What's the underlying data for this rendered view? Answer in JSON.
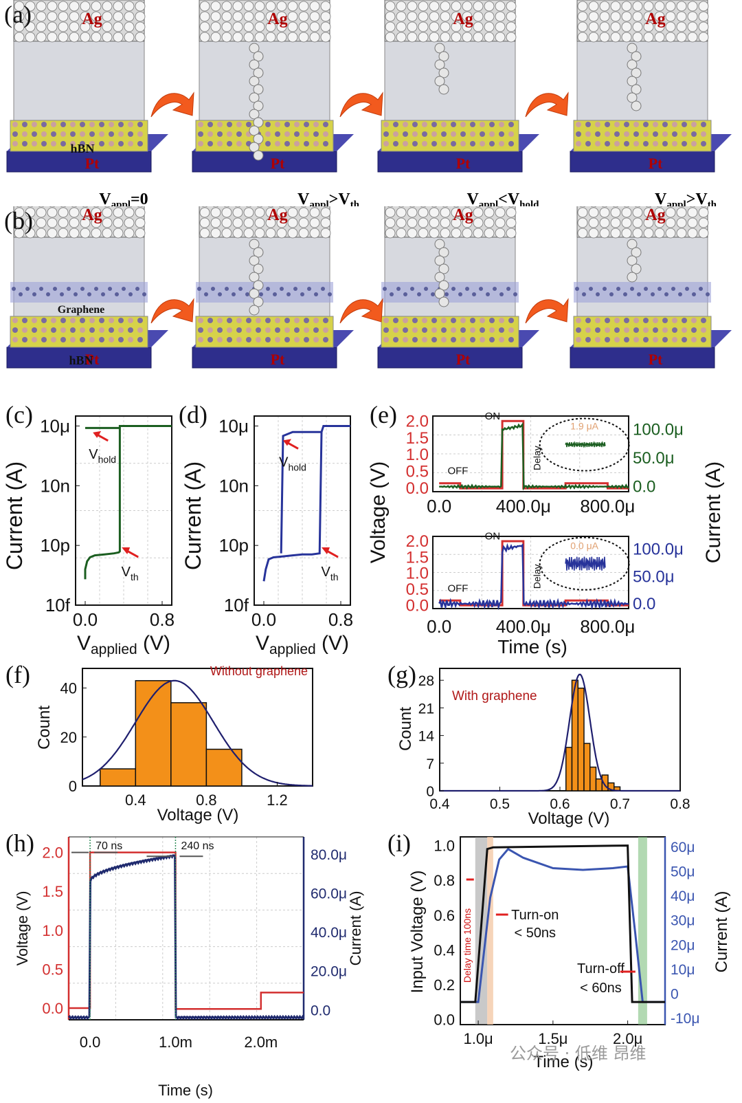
{
  "panel_labels": [
    "(a)",
    "(b)",
    "(c)",
    "(d)",
    "(e)",
    "(f)",
    "(g)",
    "(h)",
    "(i)"
  ],
  "schematic": {
    "top_electrode": "Ag",
    "bottom_electrode": "Pt",
    "layer_hbn": "hBN",
    "layer_graphene": "Graphene",
    "conditions": [
      {
        "v": "V",
        "sub": "appl",
        "rel": "=0",
        "sub2": ""
      },
      {
        "v": "V",
        "sub": "appl",
        "rel": ">V",
        "sub2": "th"
      },
      {
        "v": "V",
        "sub": "appl",
        "rel": "<V",
        "sub2": "hold"
      },
      {
        "v": "V",
        "sub": "appl",
        "rel": ">V",
        "sub2": "th"
      }
    ],
    "colors": {
      "ag": "#d9d9d9",
      "hbn": "#d6d24a",
      "pt": "#2e2e8c",
      "arrow": "#f25a1e"
    }
  },
  "chart_data": [
    {
      "id": "c",
      "type": "line",
      "xlabel_main": "V",
      "xlabel_sub": "applied",
      "xlabel_unit": " (V)",
      "ylabel": "Current (A)",
      "xticks": [
        "0.0",
        "0.8"
      ],
      "yticks": [
        "10μ",
        "10n",
        "10p",
        "10f"
      ],
      "xlim": [
        -0.1,
        0.9
      ],
      "ylog_range": [
        -14,
        -4.5
      ],
      "annotations": [
        {
          "main": "V",
          "sub": "hold"
        },
        {
          "main": "V",
          "sub": "th"
        }
      ],
      "series": [
        {
          "color": "#1b5e20",
          "x": [
            0,
            0,
            0.02,
            0.05,
            0.1,
            0.2,
            0.3,
            0.35,
            0.36,
            0.36,
            0.38,
            0.9
          ],
          "y": [
            -12.7,
            -12.2,
            -11.8,
            -11.6,
            -11.5,
            -11.45,
            -11.4,
            -11.35,
            -11.3,
            -5,
            -5,
            -5
          ]
        },
        {
          "color": "#1b5e20",
          "x": [
            0,
            0.36
          ],
          "y": [
            -5.1,
            -5.1
          ]
        }
      ]
    },
    {
      "id": "d",
      "type": "line",
      "xlabel_main": "V",
      "xlabel_sub": "applied",
      "xlabel_unit": " (V)",
      "ylabel": "Current (A)",
      "xticks": [
        "0.0",
        "0.8"
      ],
      "yticks": [
        "10μ",
        "10n",
        "10p",
        "10f"
      ],
      "xlim": [
        -0.1,
        0.9
      ],
      "ylog_range": [
        -14,
        -4.5
      ],
      "annotations": [
        {
          "main": "V",
          "sub": "hold"
        },
        {
          "main": "V",
          "sub": "th"
        }
      ],
      "series": [
        {
          "color": "#27339a",
          "x": [
            0,
            0.02,
            0.05,
            0.1,
            0.2,
            0.3,
            0.4,
            0.5,
            0.58,
            0.6,
            0.62,
            0.9
          ],
          "y": [
            -12.8,
            -12.2,
            -11.7,
            -11.6,
            -11.55,
            -11.5,
            -11.45,
            -11.45,
            -11.4,
            -5.3,
            -5,
            -5
          ]
        },
        {
          "color": "#27339a",
          "x": [
            0.18,
            0.2,
            0.3,
            0.6
          ],
          "y": [
            -11.4,
            -5.5,
            -5.3,
            -5.3
          ]
        }
      ]
    },
    {
      "id": "e",
      "type": "line",
      "xlabel": "Time (s)",
      "ylabel_left": "Voltage (V)",
      "ylabel_right": "Current (A)",
      "xticks": [
        "0.0",
        "400.0μ",
        "800.0μ"
      ],
      "yticks_left": [
        "2.0",
        "1.5",
        "1.0",
        "0.5",
        "0.0"
      ],
      "yticks_right": [
        "100.0μ",
        "50.0μ",
        "0.0"
      ],
      "labels": [
        "ON",
        "OFF",
        "Delay"
      ],
      "insets": [
        "1.9 μA",
        "0.0 μA"
      ],
      "top_color": "#1b5e20",
      "bottom_color": "#27339a",
      "voltage_color": "#d32f2f",
      "voltage_x": [
        0,
        100,
        100,
        300,
        300,
        400,
        400,
        600,
        600,
        800,
        800,
        900
      ],
      "voltage_y": [
        0.15,
        0.15,
        0,
        0,
        2,
        2,
        0,
        0,
        0.15,
        0.15,
        0,
        0
      ],
      "current_x": [
        0,
        295,
        300,
        320,
        390,
        400,
        405,
        900
      ],
      "current_y": [
        0.02,
        0.02,
        1.7,
        1.85,
        1.88,
        1.88,
        0.1,
        0.05
      ]
    },
    {
      "id": "f",
      "type": "bar",
      "title": "Without graphene",
      "xlabel": "Voltage (V)",
      "ylabel": "Count",
      "xticks": [
        "0.4",
        "0.8",
        "1.2"
      ],
      "yticks": [
        "0",
        "20",
        "40"
      ],
      "xlim": [
        0.1,
        1.4
      ],
      "ylim": [
        0,
        48
      ],
      "bins": [
        [
          0.2,
          0.4,
          7
        ],
        [
          0.4,
          0.6,
          43
        ],
        [
          0.6,
          0.8,
          34
        ],
        [
          0.8,
          1.0,
          15
        ]
      ],
      "fit_mu": 0.62,
      "fit_sigma": 0.22,
      "fit_peak": 43,
      "bar_color": "#f39019",
      "fit_color": "#1f1f6e"
    },
    {
      "id": "g",
      "type": "bar",
      "title": "With graphene",
      "xlabel": "Voltage (V)",
      "ylabel": "Count",
      "xticks": [
        "0.4",
        "0.5",
        "0.6",
        "0.7",
        "0.8"
      ],
      "yticks": [
        "0",
        "7",
        "14",
        "21",
        "28"
      ],
      "xlim": [
        0.4,
        0.8
      ],
      "ylim": [
        0,
        31
      ],
      "bins": [
        [
          0.61,
          0.62,
          11
        ],
        [
          0.62,
          0.63,
          28
        ],
        [
          0.63,
          0.64,
          26
        ],
        [
          0.64,
          0.65,
          12
        ],
        [
          0.65,
          0.66,
          6
        ],
        [
          0.66,
          0.67,
          3
        ],
        [
          0.67,
          0.68,
          4
        ],
        [
          0.68,
          0.69,
          2
        ],
        [
          0.69,
          0.7,
          1
        ]
      ],
      "fit_mu": 0.633,
      "fit_sigma": 0.017,
      "fit_peak": 29.5,
      "bar_color": "#f39019",
      "fit_color": "#1f1f6e"
    },
    {
      "id": "h",
      "type": "line",
      "xlabel": "Time (s)",
      "ylabel_left": "Voltage (V)",
      "ylabel_right": "Current (A)",
      "xticks": [
        "0.0",
        "1.0m",
        "2.0m"
      ],
      "yticks_left": [
        "2.0",
        "1.5",
        "1.0",
        "0.5",
        "0.0"
      ],
      "yticks_right": [
        "80.0μ",
        "60.0μ",
        "40.0μ",
        "20.0μ",
        "0.0"
      ],
      "annotations": [
        "70 ns",
        "240 ns"
      ],
      "voltage_color": "#d32f2f",
      "current_color": "#1f2a6e",
      "xlim": [
        -0.25,
        2.5
      ],
      "ylim": [
        -0.15,
        2.2
      ],
      "voltage_x": [
        -0.25,
        0,
        0,
        1,
        1,
        2,
        2,
        2.5
      ],
      "voltage_y": [
        0,
        0,
        2,
        2,
        -0.01,
        -0.01,
        0.2,
        0.2
      ],
      "current_x": [
        -0.25,
        0,
        0.01,
        0.05,
        0.2,
        0.5,
        0.8,
        1,
        1.01,
        2.5
      ],
      "current_y": [
        -0.12,
        -0.12,
        1.6,
        1.72,
        1.8,
        1.88,
        1.93,
        1.96,
        -0.12,
        -0.12
      ]
    },
    {
      "id": "i",
      "type": "line",
      "xlabel": "Time (s)",
      "ylabel_left": "Input Voltage (V)",
      "ylabel_right": "Current (A)",
      "xticks": [
        "1.0μ",
        "1.5μ",
        "2.0μ"
      ],
      "yticks_left": [
        "1.0",
        "0.8",
        "0.6",
        "0.4",
        "0.2",
        "0.0"
      ],
      "yticks_right": [
        "60μ",
        "50μ",
        "40μ",
        "30μ",
        "20μ",
        "10μ",
        "0",
        "-10μ"
      ],
      "annotations": [
        "Delay time 100ns",
        "Turn-on",
        "< 50ns",
        "Turn-off",
        "< 60ns"
      ],
      "voltage_color": "#111111",
      "current_color": "#3a55b0",
      "xlim": [
        0.88,
        2.25
      ],
      "ylim": [
        -0.03,
        1.05
      ],
      "voltage_x": [
        0.88,
        0.98,
        1.06,
        1.1,
        2.0,
        2.03,
        2.08,
        2.25
      ],
      "voltage_y": [
        0.1,
        0.1,
        0.98,
        0.99,
        1.0,
        0.1,
        0.1,
        0.1
      ],
      "current_x": [
        0.88,
        1.0,
        1.08,
        1.14,
        1.2,
        1.3,
        1.5,
        1.7,
        1.9,
        2.0,
        2.05,
        2.1,
        2.25
      ],
      "current_y": [
        0.1,
        0.1,
        0.7,
        0.92,
        0.98,
        0.93,
        0.87,
        0.86,
        0.87,
        0.88,
        0.5,
        0.1,
        0.1
      ]
    }
  ],
  "watermark": "公众号 · 低维 昂维"
}
